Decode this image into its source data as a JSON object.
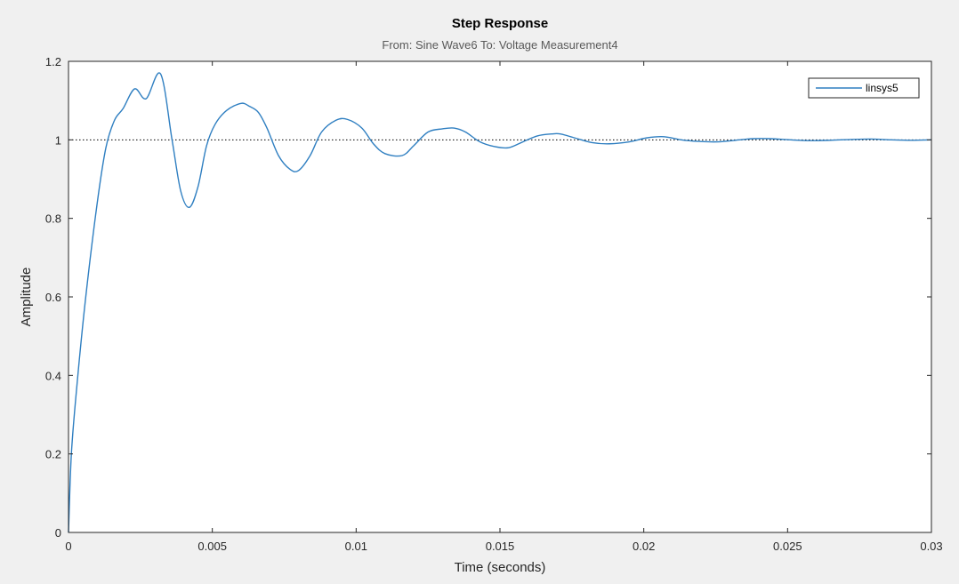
{
  "colors": {
    "figure_background": "#f0f0f0",
    "axes_background": "#ffffff",
    "series_line": "#2f7fc1",
    "reference_line": "#000000",
    "axis_line": "#262626"
  },
  "chart_data": {
    "type": "line",
    "title": "Step Response",
    "subtitle": "From: Sine Wave6  To: Voltage Measurement4",
    "xlabel": "Time (seconds)",
    "ylabel": "Amplitude",
    "xlim": [
      0,
      0.03
    ],
    "ylim": [
      0,
      1.2
    ],
    "xticks": [
      0,
      0.005,
      0.01,
      0.015,
      0.02,
      0.025,
      0.03
    ],
    "xtick_labels": [
      "0",
      "0.005",
      "0.01",
      "0.015",
      "0.02",
      "0.025",
      "0.03"
    ],
    "yticks": [
      0,
      0.2,
      0.4,
      0.6,
      0.8,
      1,
      1.2
    ],
    "ytick_labels": [
      "0",
      "0.2",
      "0.4",
      "0.6",
      "0.8",
      "1",
      "1.2"
    ],
    "grid": false,
    "box": true,
    "legend_position": "top-right",
    "reference_line": {
      "y": 1,
      "style": "dotted"
    },
    "series": [
      {
        "name": "linsys5",
        "x": [
          0,
          0.0001,
          0.0003,
          0.0006,
          0.001,
          0.0013,
          0.0016,
          0.0019,
          0.0023,
          0.0027,
          0.0032,
          0.0036,
          0.0039,
          0.0042,
          0.0045,
          0.0048,
          0.0051,
          0.0055,
          0.006,
          0.0063,
          0.0066,
          0.0069,
          0.0073,
          0.0077,
          0.008,
          0.0084,
          0.0088,
          0.0093,
          0.0097,
          0.0102,
          0.0106,
          0.011,
          0.0116,
          0.012,
          0.0125,
          0.013,
          0.0134,
          0.0138,
          0.0143,
          0.0148,
          0.0153,
          0.0158,
          0.0163,
          0.0168,
          0.0171,
          0.0176,
          0.0182,
          0.0188,
          0.0195,
          0.0201,
          0.0207,
          0.0213,
          0.0219,
          0.0226,
          0.0232,
          0.0238,
          0.0244,
          0.0251,
          0.0258,
          0.0265,
          0.0272,
          0.0279,
          0.0286,
          0.0293,
          0.03
        ],
        "y": [
          0,
          0.2,
          0.38,
          0.6,
          0.84,
          0.98,
          1.05,
          1.08,
          1.13,
          1.105,
          1.168,
          1.0,
          0.87,
          0.828,
          0.88,
          0.985,
          1.04,
          1.075,
          1.093,
          1.085,
          1.07,
          1.03,
          0.96,
          0.925,
          0.922,
          0.96,
          1.02,
          1.05,
          1.052,
          1.03,
          0.99,
          0.965,
          0.96,
          0.985,
          1.02,
          1.028,
          1.03,
          1.02,
          0.995,
          0.983,
          0.98,
          0.995,
          1.01,
          1.015,
          1.015,
          1.005,
          0.993,
          0.99,
          0.995,
          1.005,
          1.008,
          1.0,
          0.996,
          0.995,
          0.999,
          1.003,
          1.003,
          1.0,
          0.998,
          0.999,
          1.001,
          1.002,
          1.0,
          0.999,
          1.0
        ]
      }
    ]
  }
}
